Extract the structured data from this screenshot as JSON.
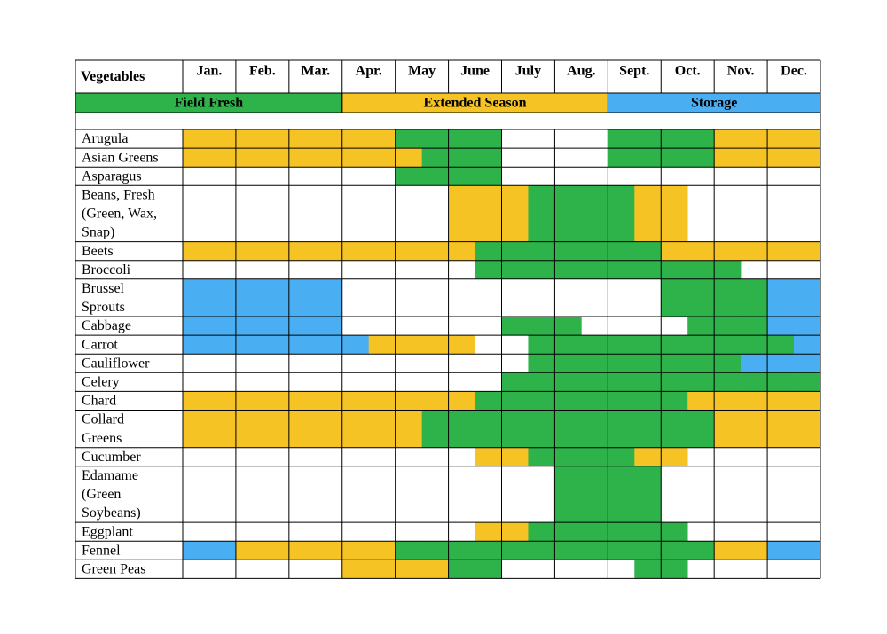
{
  "table": {
    "corner": "Vegetables",
    "months": [
      "Jan.",
      "Feb.",
      "Mar.",
      "Apr.",
      "May",
      "June",
      "July",
      "Aug.",
      "Sept.",
      "Oct.",
      "Nov.",
      "Dec."
    ],
    "legend": [
      {
        "label": "Field Fresh",
        "color": "#2db34a"
      },
      {
        "label": "Extended Season",
        "color": "#f6c325"
      },
      {
        "label": "Storage",
        "color": "#4aaef2"
      }
    ],
    "rows": [
      {
        "label": [
          "Arugula"
        ],
        "cells": [
          "#f6c325",
          "#f6c325",
          "#f6c325",
          "#f6c325",
          "#f6c325",
          "#f6c325",
          "#f6c325",
          "#f6c325",
          "#2db34a",
          "#2db34a",
          "#2db34a",
          "#2db34a",
          null,
          null,
          null,
          null,
          "#2db34a",
          "#2db34a",
          "#2db34a",
          "#2db34a",
          "#f6c325",
          "#f6c325",
          "#f6c325",
          "#f6c325"
        ]
      },
      {
        "label": [
          "Asian Greens"
        ],
        "cells": [
          "#f6c325",
          "#f6c325",
          "#f6c325",
          "#f6c325",
          "#f6c325",
          "#f6c325",
          "#f6c325",
          "#f6c325",
          "#f6c325",
          "#2db34a",
          "#2db34a",
          "#2db34a",
          null,
          null,
          null,
          null,
          "#2db34a",
          "#2db34a",
          "#2db34a",
          "#2db34a",
          "#f6c325",
          "#f6c325",
          "#f6c325",
          "#f6c325"
        ]
      },
      {
        "label": [
          "Asparagus"
        ],
        "cells": [
          null,
          null,
          null,
          null,
          null,
          null,
          null,
          null,
          "#2db34a",
          "#2db34a",
          "#2db34a",
          "#2db34a",
          null,
          null,
          null,
          null,
          null,
          null,
          null,
          null,
          null,
          null,
          null,
          null
        ]
      },
      {
        "label": [
          "Beans, Fresh",
          "(Green, Wax,",
          "Snap)"
        ],
        "cells": [
          null,
          null,
          null,
          null,
          null,
          null,
          null,
          null,
          null,
          null,
          "#f6c325",
          "#f6c325",
          "#f6c325",
          "#2db34a",
          "#2db34a",
          "#2db34a",
          "#2db34a",
          "#f6c325",
          "#f6c325",
          null,
          null,
          null,
          null,
          null
        ]
      },
      {
        "label": [
          "Beets"
        ],
        "cells": [
          "#f6c325",
          "#f6c325",
          "#f6c325",
          "#f6c325",
          "#f6c325",
          "#f6c325",
          "#f6c325",
          "#f6c325",
          "#f6c325",
          "#f6c325",
          "#f6c325",
          "#2db34a",
          "#2db34a",
          "#2db34a",
          "#2db34a",
          "#2db34a",
          "#2db34a",
          "#2db34a",
          "#f6c325",
          "#f6c325",
          "#f6c325",
          "#f6c325",
          "#f6c325",
          "#f6c325"
        ]
      },
      {
        "label": [
          "Broccoli"
        ],
        "cells": [
          null,
          null,
          null,
          null,
          null,
          null,
          null,
          null,
          null,
          null,
          null,
          "#2db34a",
          "#2db34a",
          "#2db34a",
          "#2db34a",
          "#2db34a",
          "#2db34a",
          "#2db34a",
          "#2db34a",
          "#2db34a",
          "#2db34a",
          null,
          null,
          null
        ]
      },
      {
        "label": [
          "Brussel",
          "Sprouts"
        ],
        "cells": [
          "#4aaef2",
          "#4aaef2",
          "#4aaef2",
          "#4aaef2",
          "#4aaef2",
          "#4aaef2",
          null,
          null,
          null,
          null,
          null,
          null,
          null,
          null,
          null,
          null,
          null,
          null,
          "#2db34a",
          "#2db34a",
          "#2db34a",
          "#2db34a",
          "#4aaef2",
          "#4aaef2"
        ]
      },
      {
        "label": [
          "Cabbage"
        ],
        "cells": [
          "#4aaef2",
          "#4aaef2",
          "#4aaef2",
          "#4aaef2",
          "#4aaef2",
          "#4aaef2",
          null,
          null,
          null,
          null,
          null,
          null,
          "#2db34a",
          "#2db34a",
          "#2db34a",
          null,
          null,
          null,
          null,
          "#2db34a",
          "#2db34a",
          "#2db34a",
          "#4aaef2",
          "#4aaef2"
        ]
      },
      {
        "label": [
          "Carrot"
        ],
        "cells": [
          "#4aaef2",
          "#4aaef2",
          "#4aaef2",
          "#4aaef2",
          "#4aaef2",
          "#4aaef2",
          "#4aaef2",
          "#f6c325",
          "#f6c325",
          "#f6c325",
          "#f6c325",
          null,
          null,
          "#2db34a",
          "#2db34a",
          "#2db34a",
          "#2db34a",
          "#2db34a",
          "#2db34a",
          "#2db34a",
          "#2db34a",
          "#2db34a",
          "#2db34a",
          "#4aaef2"
        ]
      },
      {
        "label": [
          "Cauliflower"
        ],
        "cells": [
          null,
          null,
          null,
          null,
          null,
          null,
          null,
          null,
          null,
          null,
          null,
          null,
          null,
          "#2db34a",
          "#2db34a",
          "#2db34a",
          "#2db34a",
          "#2db34a",
          "#2db34a",
          "#2db34a",
          "#2db34a",
          "#4aaef2",
          "#4aaef2",
          "#4aaef2"
        ]
      },
      {
        "label": [
          "Celery"
        ],
        "cells": [
          null,
          null,
          null,
          null,
          null,
          null,
          null,
          null,
          null,
          null,
          null,
          null,
          "#2db34a",
          "#2db34a",
          "#2db34a",
          "#2db34a",
          "#2db34a",
          "#2db34a",
          "#2db34a",
          "#2db34a",
          "#2db34a",
          "#2db34a",
          "#2db34a",
          "#2db34a"
        ]
      },
      {
        "label": [
          "Chard"
        ],
        "cells": [
          "#f6c325",
          "#f6c325",
          "#f6c325",
          "#f6c325",
          "#f6c325",
          "#f6c325",
          "#f6c325",
          "#f6c325",
          "#f6c325",
          "#f6c325",
          "#f6c325",
          "#2db34a",
          "#2db34a",
          "#2db34a",
          "#2db34a",
          "#2db34a",
          "#2db34a",
          "#2db34a",
          "#2db34a",
          "#f6c325",
          "#f6c325",
          "#f6c325",
          "#f6c325",
          "#f6c325"
        ]
      },
      {
        "label": [
          "Collard",
          "Greens"
        ],
        "cells": [
          "#f6c325",
          "#f6c325",
          "#f6c325",
          "#f6c325",
          "#f6c325",
          "#f6c325",
          "#f6c325",
          "#f6c325",
          "#f6c325",
          "#2db34a",
          "#2db34a",
          "#2db34a",
          "#2db34a",
          "#2db34a",
          "#2db34a",
          "#2db34a",
          "#2db34a",
          "#2db34a",
          "#2db34a",
          "#2db34a",
          "#f6c325",
          "#f6c325",
          "#f6c325",
          "#f6c325"
        ]
      },
      {
        "label": [
          "Cucumber"
        ],
        "cells": [
          null,
          null,
          null,
          null,
          null,
          null,
          null,
          null,
          null,
          null,
          null,
          "#f6c325",
          "#f6c325",
          "#2db34a",
          "#2db34a",
          "#2db34a",
          "#2db34a",
          "#f6c325",
          "#f6c325",
          null,
          null,
          null,
          null,
          null
        ]
      },
      {
        "label": [
          "Edamame",
          "(Green",
          "Soybeans)"
        ],
        "cells": [
          null,
          null,
          null,
          null,
          null,
          null,
          null,
          null,
          null,
          null,
          null,
          null,
          null,
          null,
          "#2db34a",
          "#2db34a",
          "#2db34a",
          "#2db34a",
          null,
          null,
          null,
          null,
          null,
          null
        ]
      },
      {
        "label": [
          "Eggplant"
        ],
        "cells": [
          null,
          null,
          null,
          null,
          null,
          null,
          null,
          null,
          null,
          null,
          null,
          "#f6c325",
          "#f6c325",
          "#2db34a",
          "#2db34a",
          "#2db34a",
          "#2db34a",
          "#2db34a",
          "#2db34a",
          null,
          null,
          null,
          null,
          null
        ]
      },
      {
        "label": [
          "Fennel"
        ],
        "cells": [
          "#4aaef2",
          "#4aaef2",
          "#f6c325",
          "#f6c325",
          "#f6c325",
          "#f6c325",
          "#f6c325",
          "#f6c325",
          "#2db34a",
          "#2db34a",
          "#2db34a",
          "#2db34a",
          "#2db34a",
          "#2db34a",
          "#2db34a",
          "#2db34a",
          "#2db34a",
          "#2db34a",
          "#2db34a",
          "#2db34a",
          "#f6c325",
          "#f6c325",
          "#4aaef2",
          "#4aaef2"
        ]
      },
      {
        "label": [
          "Green Peas"
        ],
        "cells": [
          null,
          null,
          null,
          null,
          null,
          null,
          "#f6c325",
          "#f6c325",
          "#f6c325",
          "#f6c325",
          "#2db34a",
          "#2db34a",
          null,
          null,
          null,
          null,
          null,
          "#2db34a",
          "#2db34a",
          null,
          null,
          null,
          null,
          null
        ]
      }
    ]
  }
}
